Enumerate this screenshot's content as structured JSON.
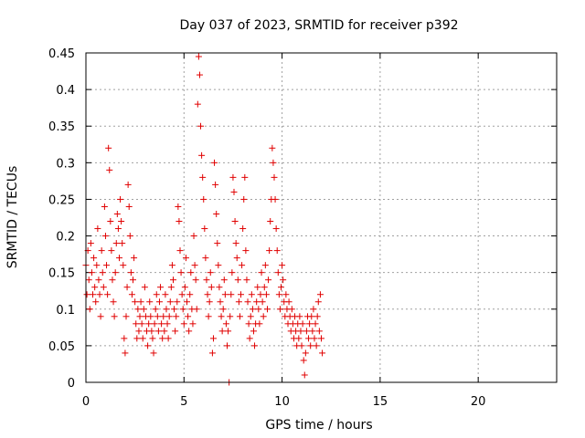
{
  "chart_data": {
    "type": "scatter",
    "title": "Day 037 of 2023, SRMTID for receiver p392",
    "xlabel": "GPS time / hours",
    "ylabel": "SRMTID / TECUs",
    "xlim": [
      0,
      24
    ],
    "ylim": [
      0,
      0.45
    ],
    "xticks": [
      0,
      5,
      10,
      15,
      20
    ],
    "xtick_labels": [
      "0",
      "5",
      "10",
      "15",
      "20"
    ],
    "yticks": [
      0,
      0.05,
      0.1,
      0.15,
      0.2,
      0.25,
      0.3,
      0.35,
      0.4,
      0.45
    ],
    "ytick_labels": [
      "0",
      "0.05",
      "0.1",
      "0.15",
      "0.2",
      "0.25",
      "0.3",
      "0.35",
      "0.4",
      "0.45"
    ],
    "grid": true,
    "marker": "+",
    "color": "#e00000",
    "series": [
      {
        "name": "SRMTID",
        "points": [
          [
            0.0,
            0.16
          ],
          [
            0.05,
            0.12
          ],
          [
            0.1,
            0.18
          ],
          [
            0.15,
            0.14
          ],
          [
            0.2,
            0.1
          ],
          [
            0.25,
            0.19
          ],
          [
            0.3,
            0.15
          ],
          [
            0.35,
            0.12
          ],
          [
            0.4,
            0.17
          ],
          [
            0.45,
            0.13
          ],
          [
            0.5,
            0.11
          ],
          [
            0.55,
            0.16
          ],
          [
            0.6,
            0.21
          ],
          [
            0.65,
            0.14
          ],
          [
            0.7,
            0.12
          ],
          [
            0.75,
            0.09
          ],
          [
            0.8,
            0.18
          ],
          [
            0.85,
            0.15
          ],
          [
            0.9,
            0.13
          ],
          [
            0.95,
            0.24
          ],
          [
            1.0,
            0.2
          ],
          [
            1.05,
            0.16
          ],
          [
            1.1,
            0.12
          ],
          [
            1.15,
            0.32
          ],
          [
            1.2,
            0.29
          ],
          [
            1.25,
            0.22
          ],
          [
            1.3,
            0.18
          ],
          [
            1.35,
            0.14
          ],
          [
            1.4,
            0.11
          ],
          [
            1.45,
            0.09
          ],
          [
            1.5,
            0.15
          ],
          [
            1.55,
            0.19
          ],
          [
            1.6,
            0.23
          ],
          [
            1.65,
            0.21
          ],
          [
            1.7,
            0.17
          ],
          [
            1.75,
            0.25
          ],
          [
            1.8,
            0.22
          ],
          [
            1.85,
            0.19
          ],
          [
            1.9,
            0.16
          ],
          [
            1.95,
            0.06
          ],
          [
            2.0,
            0.04
          ],
          [
            2.05,
            0.09
          ],
          [
            2.1,
            0.13
          ],
          [
            2.15,
            0.27
          ],
          [
            2.2,
            0.24
          ],
          [
            2.25,
            0.2
          ],
          [
            2.3,
            0.15
          ],
          [
            2.35,
            0.12
          ],
          [
            2.4,
            0.14
          ],
          [
            2.45,
            0.17
          ],
          [
            2.5,
            0.11
          ],
          [
            2.55,
            0.08
          ],
          [
            2.6,
            0.06
          ],
          [
            2.65,
            0.1
          ],
          [
            2.7,
            0.07
          ],
          [
            2.75,
            0.09
          ],
          [
            2.8,
            0.11
          ],
          [
            2.85,
            0.08
          ],
          [
            2.9,
            0.06
          ],
          [
            2.95,
            0.1
          ],
          [
            3.0,
            0.13
          ],
          [
            3.05,
            0.09
          ],
          [
            3.1,
            0.07
          ],
          [
            3.15,
            0.05
          ],
          [
            3.2,
            0.08
          ],
          [
            3.25,
            0.11
          ],
          [
            3.3,
            0.09
          ],
          [
            3.35,
            0.07
          ],
          [
            3.4,
            0.06
          ],
          [
            3.45,
            0.04
          ],
          [
            3.5,
            0.08
          ],
          [
            3.55,
            0.1
          ],
          [
            3.6,
            0.12
          ],
          [
            3.65,
            0.09
          ],
          [
            3.7,
            0.07
          ],
          [
            3.75,
            0.11
          ],
          [
            3.8,
            0.13
          ],
          [
            3.85,
            0.08
          ],
          [
            3.9,
            0.06
          ],
          [
            3.95,
            0.09
          ],
          [
            4.0,
            0.07
          ],
          [
            4.05,
            0.12
          ],
          [
            4.1,
            0.1
          ],
          [
            4.15,
            0.08
          ],
          [
            4.2,
            0.06
          ],
          [
            4.25,
            0.09
          ],
          [
            4.3,
            0.11
          ],
          [
            4.35,
            0.13
          ],
          [
            4.4,
            0.16
          ],
          [
            4.45,
            0.14
          ],
          [
            4.5,
            0.1
          ],
          [
            4.55,
            0.07
          ],
          [
            4.6,
            0.09
          ],
          [
            4.65,
            0.11
          ],
          [
            4.7,
            0.24
          ],
          [
            4.75,
            0.22
          ],
          [
            4.8,
            0.18
          ],
          [
            4.85,
            0.15
          ],
          [
            4.9,
            0.12
          ],
          [
            4.95,
            0.1
          ],
          [
            5.0,
            0.08
          ],
          [
            5.05,
            0.13
          ],
          [
            5.1,
            0.17
          ],
          [
            5.15,
            0.11
          ],
          [
            5.2,
            0.09
          ],
          [
            5.25,
            0.07
          ],
          [
            5.3,
            0.12
          ],
          [
            5.35,
            0.15
          ],
          [
            5.4,
            0.1
          ],
          [
            5.45,
            0.08
          ],
          [
            5.5,
            0.2
          ],
          [
            5.55,
            0.16
          ],
          [
            5.6,
            0.14
          ],
          [
            5.65,
            0.1
          ],
          [
            5.7,
            0.38
          ],
          [
            5.75,
            0.445
          ],
          [
            5.8,
            0.42
          ],
          [
            5.85,
            0.35
          ],
          [
            5.9,
            0.31
          ],
          [
            5.95,
            0.28
          ],
          [
            6.0,
            0.25
          ],
          [
            6.05,
            0.21
          ],
          [
            6.1,
            0.17
          ],
          [
            6.15,
            0.14
          ],
          [
            6.2,
            0.12
          ],
          [
            6.25,
            0.09
          ],
          [
            6.3,
            0.11
          ],
          [
            6.35,
            0.15
          ],
          [
            6.4,
            0.13
          ],
          [
            6.45,
            0.04
          ],
          [
            6.5,
            0.06
          ],
          [
            6.55,
            0.3
          ],
          [
            6.6,
            0.27
          ],
          [
            6.65,
            0.23
          ],
          [
            6.7,
            0.19
          ],
          [
            6.75,
            0.16
          ],
          [
            6.8,
            0.13
          ],
          [
            6.85,
            0.11
          ],
          [
            6.9,
            0.09
          ],
          [
            6.95,
            0.07
          ],
          [
            7.0,
            0.1
          ],
          [
            7.05,
            0.14
          ],
          [
            7.1,
            0.12
          ],
          [
            7.15,
            0.08
          ],
          [
            7.2,
            0.05
          ],
          [
            7.25,
            0.07
          ],
          [
            7.3,
            0.0
          ],
          [
            7.35,
            0.09
          ],
          [
            7.4,
            0.12
          ],
          [
            7.45,
            0.15
          ],
          [
            7.5,
            0.28
          ],
          [
            7.55,
            0.26
          ],
          [
            7.6,
            0.22
          ],
          [
            7.65,
            0.19
          ],
          [
            7.7,
            0.17
          ],
          [
            7.75,
            0.14
          ],
          [
            7.8,
            0.11
          ],
          [
            7.85,
            0.09
          ],
          [
            7.9,
            0.12
          ],
          [
            7.95,
            0.16
          ],
          [
            8.0,
            0.21
          ],
          [
            8.05,
            0.25
          ],
          [
            8.1,
            0.28
          ],
          [
            8.15,
            0.18
          ],
          [
            8.2,
            0.14
          ],
          [
            8.25,
            0.11
          ],
          [
            8.3,
            0.08
          ],
          [
            8.35,
            0.06
          ],
          [
            8.4,
            0.09
          ],
          [
            8.45,
            0.12
          ],
          [
            8.5,
            0.1
          ],
          [
            8.55,
            0.07
          ],
          [
            8.6,
            0.05
          ],
          [
            8.65,
            0.08
          ],
          [
            8.7,
            0.11
          ],
          [
            8.75,
            0.13
          ],
          [
            8.8,
            0.1
          ],
          [
            8.85,
            0.08
          ],
          [
            8.9,
            0.12
          ],
          [
            8.95,
            0.15
          ],
          [
            9.0,
            0.11
          ],
          [
            9.05,
            0.09
          ],
          [
            9.1,
            0.13
          ],
          [
            9.15,
            0.16
          ],
          [
            9.2,
            0.12
          ],
          [
            9.25,
            0.1
          ],
          [
            9.3,
            0.14
          ],
          [
            9.35,
            0.18
          ],
          [
            9.4,
            0.22
          ],
          [
            9.45,
            0.25
          ],
          [
            9.5,
            0.32
          ],
          [
            9.55,
            0.3
          ],
          [
            9.6,
            0.28
          ],
          [
            9.65,
            0.25
          ],
          [
            9.7,
            0.21
          ],
          [
            9.75,
            0.18
          ],
          [
            9.8,
            0.15
          ],
          [
            9.85,
            0.12
          ],
          [
            9.9,
            0.1
          ],
          [
            9.95,
            0.13
          ],
          [
            10.0,
            0.16
          ],
          [
            10.05,
            0.14
          ],
          [
            10.1,
            0.11
          ],
          [
            10.15,
            0.09
          ],
          [
            10.2,
            0.12
          ],
          [
            10.25,
            0.1
          ],
          [
            10.3,
            0.08
          ],
          [
            10.35,
            0.11
          ],
          [
            10.4,
            0.09
          ],
          [
            10.45,
            0.07
          ],
          [
            10.5,
            0.1
          ],
          [
            10.55,
            0.08
          ],
          [
            10.6,
            0.06
          ],
          [
            10.65,
            0.09
          ],
          [
            10.7,
            0.07
          ],
          [
            10.75,
            0.05
          ],
          [
            10.8,
            0.08
          ],
          [
            10.85,
            0.06
          ],
          [
            10.9,
            0.09
          ],
          [
            10.95,
            0.07
          ],
          [
            11.0,
            0.05
          ],
          [
            11.05,
            0.08
          ],
          [
            11.1,
            0.03
          ],
          [
            11.15,
            0.01
          ],
          [
            11.2,
            0.04
          ],
          [
            11.25,
            0.07
          ],
          [
            11.3,
            0.09
          ],
          [
            11.35,
            0.06
          ],
          [
            11.4,
            0.08
          ],
          [
            11.45,
            0.05
          ],
          [
            11.5,
            0.09
          ],
          [
            11.55,
            0.07
          ],
          [
            11.6,
            0.1
          ],
          [
            11.65,
            0.06
          ],
          [
            11.7,
            0.08
          ],
          [
            11.75,
            0.05
          ],
          [
            11.8,
            0.09
          ],
          [
            11.85,
            0.11
          ],
          [
            11.9,
            0.07
          ],
          [
            11.95,
            0.12
          ],
          [
            12.0,
            0.06
          ],
          [
            12.05,
            0.04
          ]
        ]
      }
    ]
  }
}
